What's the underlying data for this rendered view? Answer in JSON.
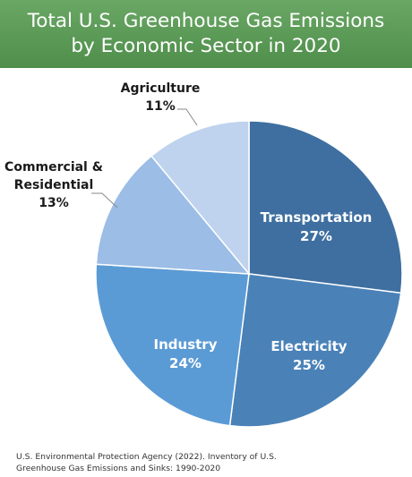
{
  "chart_data": {
    "type": "pie",
    "title_lines": [
      "Total U.S. Greenhouse Gas Emissions",
      "by Economic Sector in 2020"
    ],
    "slices": [
      {
        "name": "Transportation",
        "value": 27,
        "label": "27%",
        "color": "#3e6fa0",
        "label_color": "#ffffff"
      },
      {
        "name": "Electricity",
        "value": 25,
        "label": "25%",
        "color": "#4a82b8",
        "label_color": "#ffffff"
      },
      {
        "name": "Industry",
        "value": 24,
        "label": "24%",
        "color": "#5b9bd5",
        "label_color": "#ffffff"
      },
      {
        "name_lines": [
          "Commercial &",
          "Residential"
        ],
        "value": 13,
        "label": "13%",
        "color": "#9bbde6",
        "label_color": "#1a1a1a"
      },
      {
        "name": "Agriculture",
        "value": 11,
        "label": "11%",
        "color": "#bfd3ee",
        "label_color": "#1a1a1a"
      }
    ]
  },
  "source_lines": [
    "U.S. Environmental Protection Agency (2022). Inventory of U.S.",
    "Greenhouse Gas Emissions and Sinks: 1990-2020"
  ],
  "colors": {
    "header_green": "#5a9a55",
    "slice_border": "#ffffff"
  }
}
